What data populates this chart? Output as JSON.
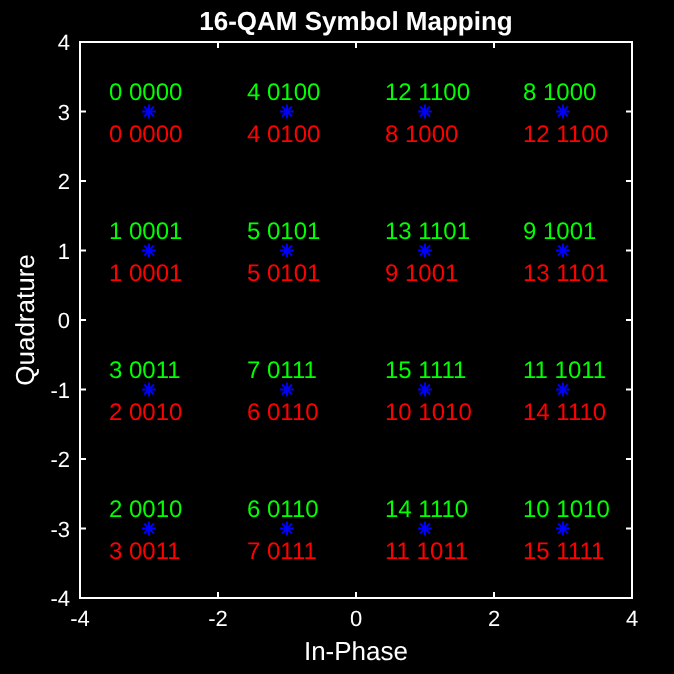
{
  "chart_data": {
    "type": "scatter",
    "title": "16-QAM Symbol Mapping",
    "xlabel": "In-Phase",
    "ylabel": "Quadrature",
    "xlim": [
      -4,
      4
    ],
    "ylim": [
      -4,
      4
    ],
    "xticks": [
      -4,
      -2,
      0,
      2,
      4
    ],
    "yticks": [
      -4,
      -3,
      -2,
      -1,
      0,
      1,
      2,
      3,
      4
    ],
    "grid": false,
    "marker": "cross",
    "series": [
      {
        "color": "#0000ff",
        "x": [
          -3,
          -1,
          1,
          3,
          -3,
          -1,
          1,
          3,
          -3,
          -1,
          1,
          3,
          -3,
          -1,
          1,
          3
        ],
        "values": [
          3,
          3,
          3,
          3,
          1,
          1,
          1,
          1,
          -1,
          -1,
          -1,
          -1,
          -3,
          -3,
          -3,
          -3
        ]
      }
    ],
    "annotations": [
      {
        "text": "0 0000",
        "x": -3,
        "y": 3
      },
      {
        "text": "4 0100",
        "x": -1,
        "y": 3
      },
      {
        "text": "12 1100",
        "x": 1,
        "y": 3
      },
      {
        "text": "8 1000",
        "x": 3,
        "y": 3
      },
      {
        "text": "1 0001",
        "x": -3,
        "y": 1
      },
      {
        "text": "5 0101",
        "x": -1,
        "y": 1
      },
      {
        "text": "13 1101",
        "x": 1,
        "y": 1
      },
      {
        "text": "9 1001",
        "x": 3,
        "y": 1
      },
      {
        "text": "3 0011",
        "x": -3,
        "y": -1
      },
      {
        "text": "7 0111",
        "x": -1,
        "y": -1
      },
      {
        "text": "15 1111",
        "x": 1,
        "y": -1
      },
      {
        "text": "11 1011",
        "x": 3,
        "y": -1
      },
      {
        "text": "2 0010",
        "x": -3,
        "y": -3
      },
      {
        "text": "6 0110",
        "x": -1,
        "y": -3
      },
      {
        "text": "14 1110",
        "x": 1,
        "y": -3
      },
      {
        "text": "10 1010",
        "x": 3,
        "y": -3
      },
      {
        "text": "0 0000",
        "x": -3,
        "y": 3
      },
      {
        "text": "4 0100",
        "x": -1,
        "y": 3
      },
      {
        "text": "8 1000",
        "x": 1,
        "y": 3
      },
      {
        "text": "12 1100",
        "x": 3,
        "y": 3
      },
      {
        "text": "1 0001",
        "x": -3,
        "y": 1
      },
      {
        "text": "5 0101",
        "x": -1,
        "y": 1
      },
      {
        "text": "9 1001",
        "x": 1,
        "y": 1
      },
      {
        "text": "13 1101",
        "x": 3,
        "y": 1
      },
      {
        "text": "2 0010",
        "x": -3,
        "y": -1
      },
      {
        "text": "6 0110",
        "x": -1,
        "y": -1
      },
      {
        "text": "10 1010",
        "x": 1,
        "y": -1
      },
      {
        "text": "14 1110",
        "x": 3,
        "y": -1
      },
      {
        "text": "3 0011",
        "x": -3,
        "y": -3
      },
      {
        "text": "7 0111",
        "x": -1,
        "y": -3
      },
      {
        "text": "11 1011",
        "x": 1,
        "y": -3
      },
      {
        "text": "15 1111",
        "x": 3,
        "y": -3
      }
    ]
  }
}
